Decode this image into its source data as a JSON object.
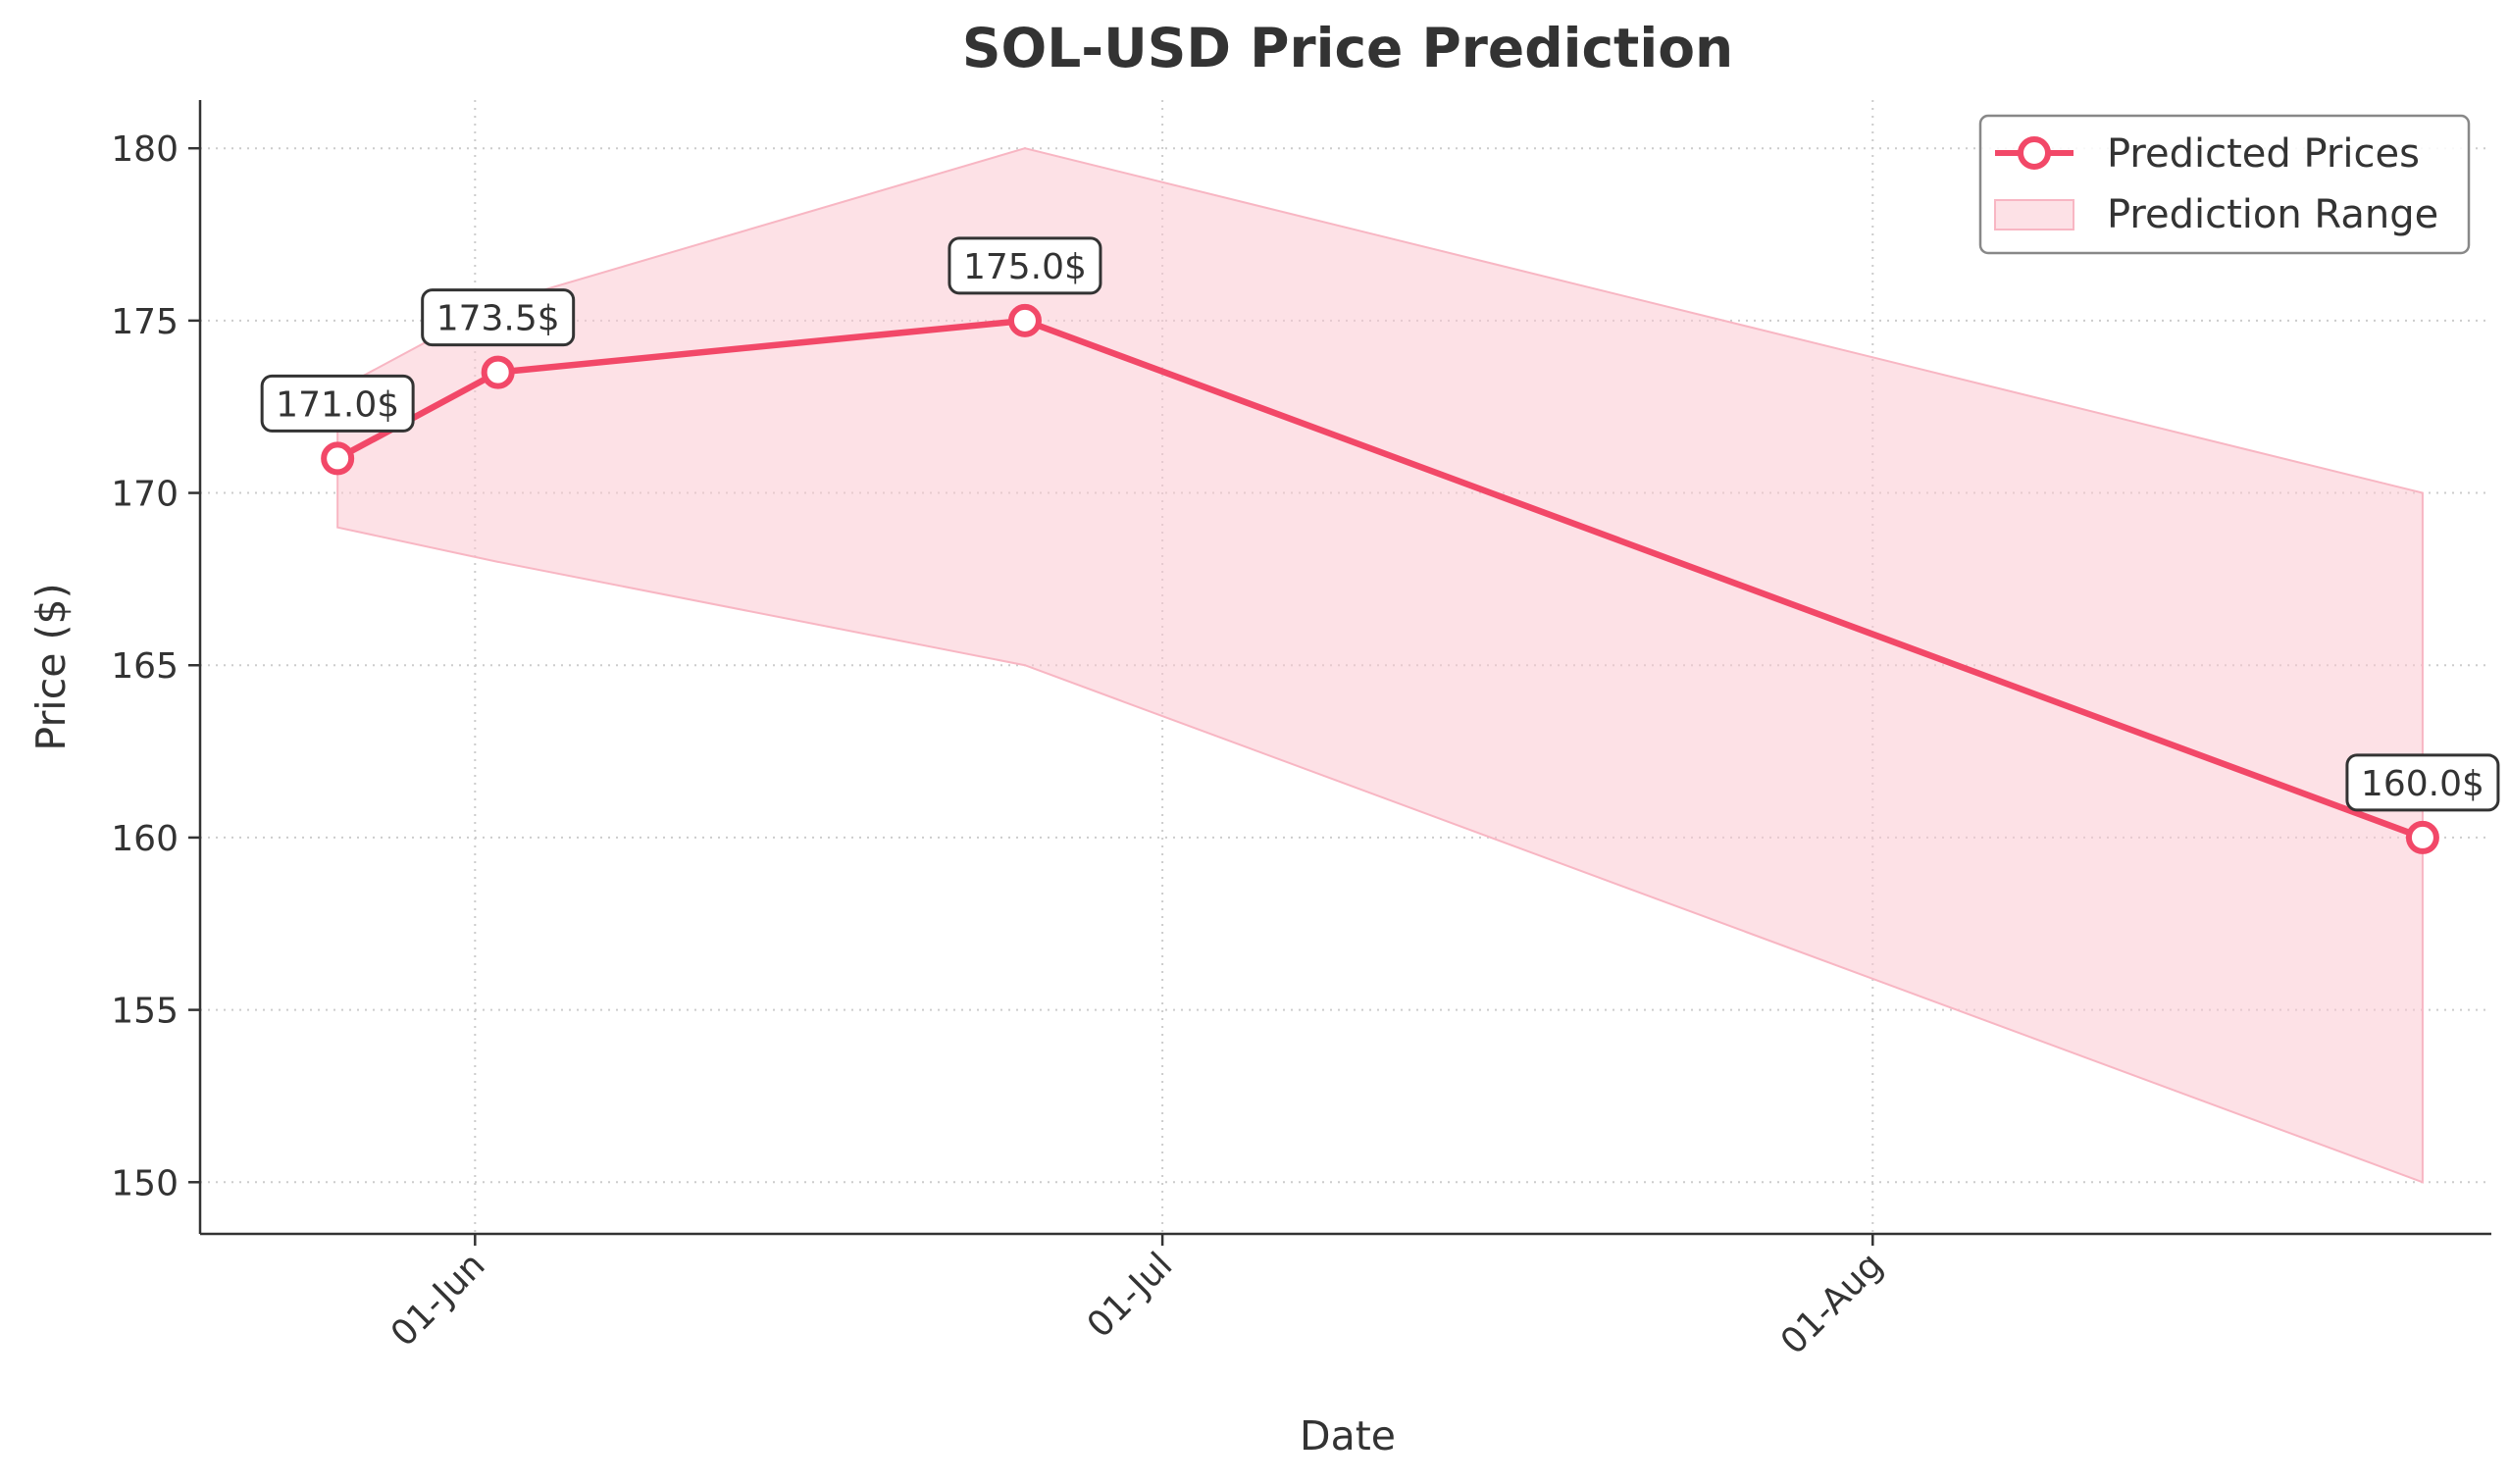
{
  "chart_data": {
    "type": "line",
    "title": "SOL-USD Price Prediction",
    "xlabel": "Date",
    "ylabel": "Price ($)",
    "ylim": [
      148.5,
      181.4
    ],
    "xlim": [
      "2024-05-20",
      "2024-08-28"
    ],
    "yticks": [
      150,
      155,
      160,
      165,
      170,
      175,
      180
    ],
    "xticks": [
      {
        "date": "2024-06-01",
        "label": "01-Jun"
      },
      {
        "date": "2024-07-01",
        "label": "01-Jul"
      },
      {
        "date": "2024-08-01",
        "label": "01-Aug"
      }
    ],
    "grid": true,
    "legend_position": "top-right",
    "series": [
      {
        "name": "Predicted Prices",
        "color": "#f24868",
        "points": [
          {
            "date": "2024-05-26",
            "value": 171.0,
            "label": "171.0$"
          },
          {
            "date": "2024-06-02",
            "value": 173.5,
            "label": "173.5$"
          },
          {
            "date": "2024-06-25",
            "value": 175.0,
            "label": "175.0$"
          },
          {
            "date": "2024-08-25",
            "value": 160.0,
            "label": "160.0$"
          }
        ]
      }
    ],
    "range": {
      "name": "Prediction Range",
      "color": "#fbc8d2",
      "points": [
        {
          "date": "2024-05-26",
          "low": 169.0,
          "high": 173.0
        },
        {
          "date": "2024-06-02",
          "low": 168.0,
          "high": 175.5
        },
        {
          "date": "2024-06-25",
          "low": 165.0,
          "high": 180.0
        },
        {
          "date": "2024-08-25",
          "low": 150.0,
          "high": 170.0
        }
      ]
    }
  }
}
